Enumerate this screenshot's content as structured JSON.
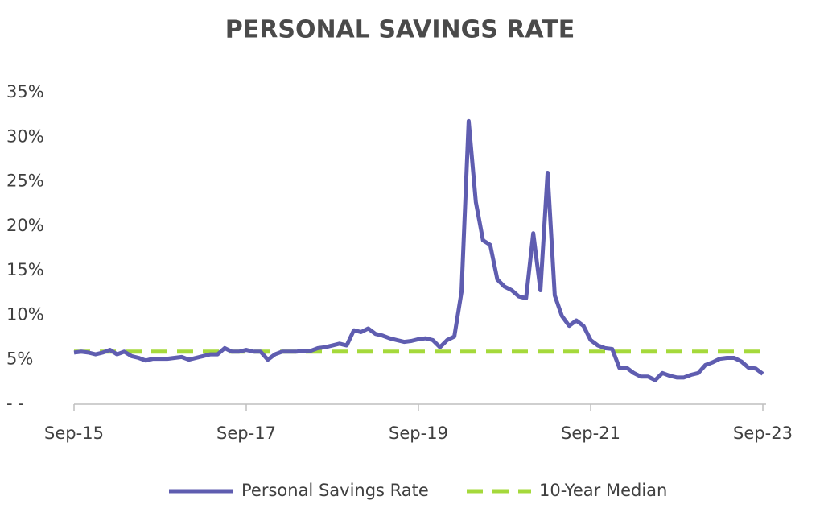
{
  "chart_data": {
    "type": "line",
    "title": "PERSONAL SAVINGS RATE",
    "categories": [
      "Sep-15",
      null,
      null,
      null,
      null,
      null,
      null,
      null,
      null,
      null,
      null,
      null,
      null,
      null,
      null,
      null,
      null,
      null,
      null,
      null,
      null,
      null,
      null,
      null,
      "Sep-17",
      null,
      null,
      null,
      null,
      null,
      null,
      null,
      null,
      null,
      null,
      null,
      null,
      null,
      null,
      null,
      null,
      null,
      null,
      null,
      null,
      null,
      null,
      null,
      "Sep-19",
      null,
      null,
      null,
      null,
      null,
      null,
      null,
      null,
      null,
      null,
      null,
      null,
      null,
      null,
      null,
      null,
      null,
      null,
      null,
      null,
      null,
      null,
      null,
      "Sep-21",
      null,
      null,
      null,
      null,
      null,
      null,
      null,
      null,
      null,
      null,
      null,
      null,
      null,
      null,
      null,
      null,
      null,
      null,
      null,
      null,
      null,
      null,
      null,
      "Sep-23"
    ],
    "series": [
      {
        "name": "Personal Savings Rate",
        "color": "#5f5db0",
        "dashed": false,
        "values": [
          5.8,
          5.9,
          5.8,
          5.6,
          5.8,
          6.1,
          5.6,
          5.9,
          5.4,
          5.2,
          4.9,
          5.1,
          5.1,
          5.1,
          5.2,
          5.3,
          5.0,
          5.2,
          5.4,
          5.6,
          5.6,
          6.3,
          5.9,
          5.9,
          6.1,
          5.9,
          5.9,
          5.0,
          5.6,
          5.9,
          5.9,
          5.9,
          6.0,
          6.0,
          6.3,
          6.4,
          6.6,
          6.8,
          6.6,
          8.3,
          8.1,
          8.5,
          7.9,
          7.7,
          7.4,
          7.2,
          7.0,
          7.1,
          7.3,
          7.4,
          7.2,
          6.4,
          7.2,
          7.6,
          12.6,
          31.8,
          22.7,
          18.4,
          17.9,
          14.0,
          13.2,
          12.8,
          12.1,
          11.9,
          19.2,
          12.8,
          26.0,
          12.2,
          9.9,
          8.8,
          9.4,
          8.8,
          7.2,
          6.6,
          6.3,
          6.2,
          4.1,
          4.1,
          3.5,
          3.1,
          3.1,
          2.7,
          3.5,
          3.2,
          3.0,
          3.0,
          3.3,
          3.5,
          4.4,
          4.7,
          5.1,
          5.2,
          5.2,
          4.8,
          4.1,
          4.0,
          3.4
        ]
      },
      {
        "name": "10-Year Median",
        "color": "#a5d93b",
        "dashed": true,
        "values": [
          5.9,
          5.9,
          5.9,
          5.9,
          5.9,
          5.9,
          5.9,
          5.9,
          5.9,
          5.9,
          5.9,
          5.9,
          5.9,
          5.9,
          5.9,
          5.9,
          5.9,
          5.9,
          5.9,
          5.9,
          5.9,
          5.9,
          5.9,
          5.9,
          5.9,
          5.9,
          5.9,
          5.9,
          5.9,
          5.9,
          5.9,
          5.9,
          5.9,
          5.9,
          5.9,
          5.9,
          5.9,
          5.9,
          5.9,
          5.9,
          5.9,
          5.9,
          5.9,
          5.9,
          5.9,
          5.9,
          5.9,
          5.9,
          5.9,
          5.9,
          5.9,
          5.9,
          5.9,
          5.9,
          5.9,
          5.9,
          5.9,
          5.9,
          5.9,
          5.9,
          5.9,
          5.9,
          5.9,
          5.9,
          5.9,
          5.9,
          5.9,
          5.9,
          5.9,
          5.9,
          5.9,
          5.9,
          5.9,
          5.9,
          5.9,
          5.9,
          5.9,
          5.9,
          5.9,
          5.9,
          5.9,
          5.9,
          5.9,
          5.9,
          5.9,
          5.9,
          5.9,
          5.9,
          5.9,
          5.9,
          5.9,
          5.9,
          5.9,
          5.9,
          5.9,
          5.9,
          5.9
        ]
      }
    ],
    "ylim": [
      0,
      35
    ],
    "yticks": [
      {
        "value": 0,
        "label": "- -"
      },
      {
        "value": 5,
        "label": "5%"
      },
      {
        "value": 10,
        "label": "10%"
      },
      {
        "value": 15,
        "label": "15%"
      },
      {
        "value": 20,
        "label": "20%"
      },
      {
        "value": 25,
        "label": "25%"
      },
      {
        "value": 30,
        "label": "30%"
      },
      {
        "value": 35,
        "label": "35%"
      }
    ],
    "grid": false,
    "legend": "bottom"
  }
}
